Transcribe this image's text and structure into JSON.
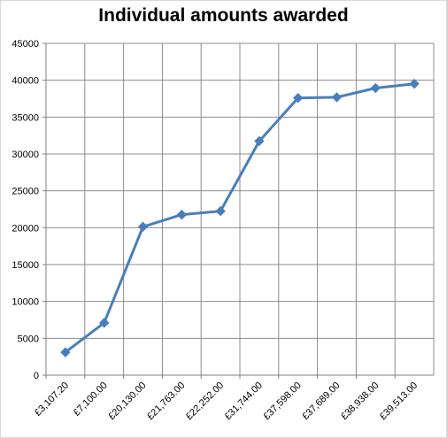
{
  "chart_data": {
    "type": "line",
    "title": "Individual amounts awarded",
    "xlabel": "",
    "ylabel": "",
    "categories": [
      "£3,107.20",
      "£7,100.00",
      "£20,130.00",
      "£21,763.00",
      "£22,252.00",
      "£31,744.00",
      "£37,598.00",
      "£37,689.00",
      "£38,938.00",
      "£39,513.00"
    ],
    "series": [
      {
        "values": [
          3107.2,
          7100,
          20130,
          21763,
          22252,
          31744,
          37598,
          37689,
          38938,
          39513
        ]
      }
    ],
    "ylim": [
      0,
      45000
    ],
    "yticks": [
      "0",
      "5000",
      "10000",
      "15000",
      "20000",
      "25000",
      "30000",
      "35000",
      "40000",
      "45000"
    ],
    "grid": true,
    "legend": "none",
    "line_color": "#4a7ebb"
  }
}
